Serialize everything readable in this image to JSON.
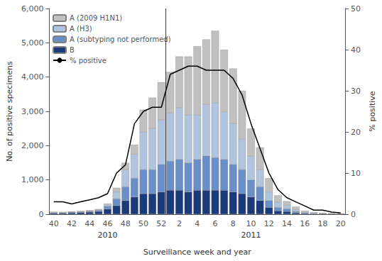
{
  "chart_data": {
    "type": "bar",
    "stacked": true,
    "grid": false,
    "legend": "upper left",
    "xlabel": "Surveillance week and year",
    "ylabel": "No. of positive specimens",
    "y2label": "% positive",
    "categories": [
      "40",
      null,
      "42",
      null,
      "44",
      null,
      "46",
      null,
      "48",
      null,
      "50",
      null,
      "52",
      null,
      "2",
      null,
      "4",
      null,
      "6",
      null,
      "8",
      null,
      "10",
      null,
      "12",
      null,
      "14",
      null,
      "16",
      null,
      "18",
      null,
      "20"
    ],
    "ylim": [
      0,
      6000
    ],
    "yticks": [
      0,
      {
        "value": 1000,
        "label": "1,000"
      },
      {
        "value": 2000,
        "label": "2,000"
      },
      {
        "value": 3000,
        "label": "3,000"
      },
      {
        "value": 4000,
        "label": "4,000"
      },
      {
        "value": 5000,
        "label": "5,000"
      },
      {
        "value": 6000,
        "label": "6,000"
      }
    ],
    "y2lim": [
      0,
      50
    ],
    "y2ticks": [
      0,
      10,
      20,
      30,
      40,
      50
    ],
    "series": [
      {
        "name": "B",
        "type": "bar",
        "color": "#1a3a7a",
        "values": [
          30,
          30,
          40,
          50,
          60,
          80,
          150,
          250,
          400,
          500,
          600,
          600,
          650,
          700,
          700,
          650,
          700,
          700,
          700,
          700,
          650,
          600,
          500,
          400,
          200,
          100,
          80,
          40,
          20,
          10,
          8,
          5,
          3
        ]
      },
      {
        "name": "A (subtyping not performed)",
        "type": "bar",
        "color": "#6a8fc8",
        "values": [
          15,
          15,
          20,
          20,
          25,
          30,
          80,
          200,
          400,
          550,
          700,
          700,
          800,
          850,
          900,
          850,
          900,
          1000,
          950,
          900,
          800,
          700,
          500,
          400,
          200,
          100,
          80,
          40,
          20,
          10,
          5,
          5,
          3
        ]
      },
      {
        "name": "A (H3)",
        "type": "bar",
        "color": "#b0c4de",
        "values": [
          5,
          5,
          5,
          5,
          10,
          15,
          40,
          200,
          500,
          700,
          1100,
          1200,
          1300,
          1400,
          1500,
          1400,
          1300,
          1500,
          1600,
          1400,
          1200,
          900,
          700,
          500,
          250,
          150,
          100,
          60,
          30,
          15,
          8,
          5,
          5
        ]
      },
      {
        "name": "A (2009 H1N1)",
        "type": "bar",
        "color": "#c0c0c0",
        "values": [
          20,
          15,
          10,
          15,
          20,
          25,
          40,
          120,
          200,
          280,
          650,
          900,
          1100,
          1200,
          1500,
          1700,
          2000,
          1900,
          2100,
          1800,
          1600,
          1400,
          800,
          650,
          400,
          200,
          120,
          80,
          30,
          20,
          10,
          5,
          5
        ]
      },
      {
        "name": "% positive",
        "type": "line",
        "axis": "y2",
        "color": "#000000",
        "values": [
          3,
          3,
          2.5,
          3,
          3.5,
          4,
          5,
          10,
          12,
          22,
          25,
          26,
          26,
          34,
          35,
          36,
          36,
          35,
          35,
          35,
          33,
          29,
          22,
          16,
          10,
          6,
          4,
          3,
          2,
          1,
          1,
          0.5,
          0.3
        ]
      }
    ],
    "vline_after": "52",
    "annotations": [
      {
        "text": "2010",
        "x": "46"
      },
      {
        "text": "2011",
        "x": "10"
      }
    ]
  }
}
